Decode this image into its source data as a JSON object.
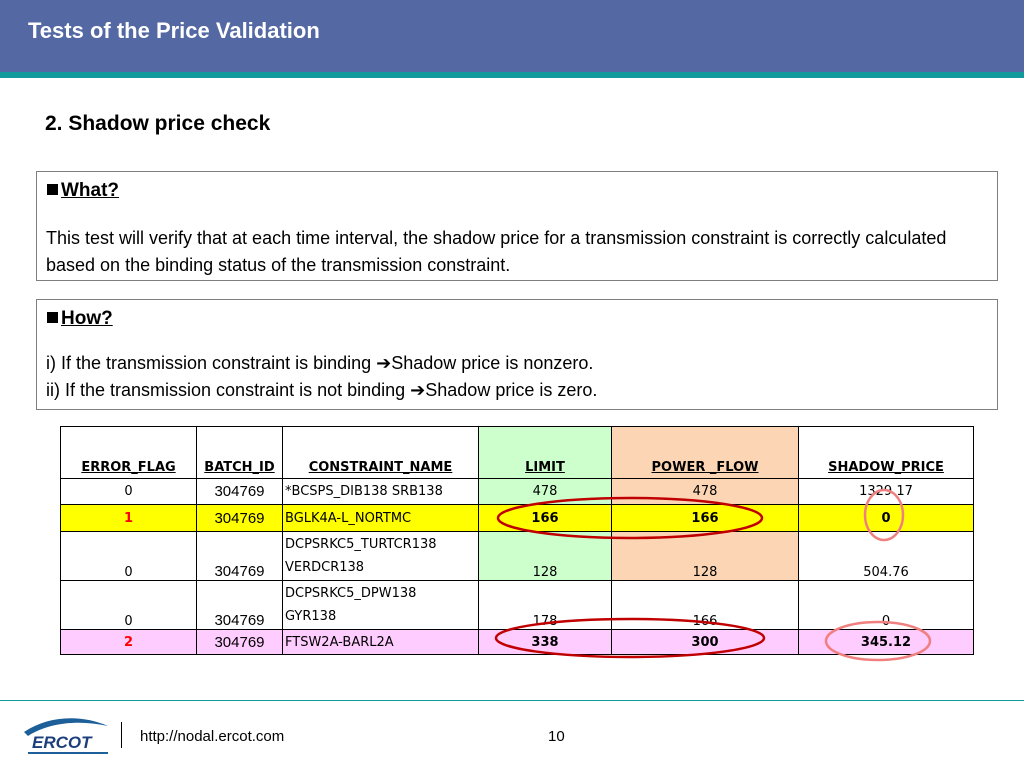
{
  "slide": {
    "title": "Tests of the Price Validation",
    "section_title": "2. Shadow price check"
  },
  "what": {
    "heading": "What?",
    "body": "This test will verify that at each time interval, the shadow price for a transmission constraint is correctly calculated based on the binding status of the transmission constraint."
  },
  "how": {
    "heading": "How?",
    "line1_before": "i) If the transmission constraint is binding ",
    "line1_after": "Shadow price is nonzero.",
    "line2_before": "ii) If the transmission constraint is not binding ",
    "line2_after": "Shadow price is zero.",
    "arrow_icon": "right-arrow-icon"
  },
  "table": {
    "headers": [
      "ERROR_FLAG",
      "BATCH_ID",
      "CONSTRAINT_NAME",
      "LIMIT",
      "POWER _FLOW",
      "SHADOW_PRICE"
    ],
    "rows": [
      {
        "error_flag": "0",
        "batch_id": "304769",
        "constraint_name": "*BCSPS_DIB138 SRB138",
        "limit": "478",
        "power_flow": "478",
        "shadow_price": "1329.17"
      },
      {
        "error_flag": "1",
        "batch_id": "304769",
        "constraint_name": "BGLK4A-L_NORTMC",
        "limit": "166",
        "power_flow": "166",
        "shadow_price": "0"
      },
      {
        "error_flag": "0",
        "batch_id": "304769",
        "constraint_name_line1": "DCPSRKC5_TURTCR138",
        "constraint_name_line2": "VERDCR138",
        "limit": "128",
        "power_flow": "128",
        "shadow_price": "504.76"
      },
      {
        "error_flag": "0",
        "batch_id": "304769",
        "constraint_name_line1": "DCPSRKC5_DPW138",
        "constraint_name_line2": "GYR138",
        "limit": "178",
        "power_flow": "166",
        "shadow_price": "0"
      },
      {
        "error_flag": "2",
        "batch_id": "304769",
        "constraint_name": "FTSW2A-BARL2A",
        "limit": "338",
        "power_flow": "300",
        "shadow_price": "345.12"
      }
    ]
  },
  "colors": {
    "header_bg": "#5468a3",
    "accent_stripe": "#12999b",
    "limit_col": "#ccffcc",
    "power_flow_col": "#fcd5b4",
    "error1_row": "#ffff00",
    "error2_row": "#ffccff",
    "highlight_ellipse": "#c00000",
    "price_circle": "#f08080"
  },
  "footer": {
    "logo_text": "ERCOT",
    "url": "http://nodal.ercot.com",
    "page_number": "10"
  }
}
